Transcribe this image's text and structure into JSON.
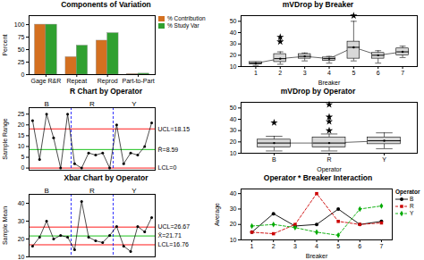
{
  "chart_data": [
    {
      "type": "bar",
      "title": "Components of Variation",
      "ylabel": "Percent",
      "categories": [
        "Gage R&R",
        "Repeat",
        "Reprod",
        "Part-to-Part"
      ],
      "series": [
        {
          "name": "% Contribution",
          "color": "#d47020",
          "values": [
            100,
            35,
            68,
            1
          ]
        },
        {
          "name": "% Study Var",
          "color": "#30a030",
          "values": [
            100,
            58,
            83,
            2
          ]
        }
      ],
      "ylim": [
        0,
        118
      ],
      "yticks": [
        0,
        25,
        50,
        75,
        100
      ],
      "legend": "upper right",
      "grid": false
    },
    {
      "type": "line",
      "title": "R Chart by Operator",
      "ylabel": "Sample Range",
      "x": [
        1,
        2,
        3,
        4,
        5,
        6,
        7,
        8,
        9,
        10,
        11,
        12,
        13,
        14,
        15,
        16,
        17,
        18
      ],
      "values": [
        22,
        4,
        25,
        14,
        0,
        25,
        2,
        0,
        7,
        6,
        7,
        0,
        20,
        2,
        7,
        6,
        10,
        21
      ],
      "color": "#000000",
      "marker": "circle",
      "xlim": [
        0.5,
        18.5
      ],
      "ylim": [
        -1,
        28
      ],
      "yticks": [
        0,
        5,
        10,
        15,
        20,
        25
      ],
      "tick_labels": "y",
      "grid": false,
      "hlines": [
        {
          "label": "UCL=18.15",
          "value": 18.15,
          "color": "red"
        },
        {
          "label": "R̄=8.59",
          "value": 8.59,
          "color": "#00bb00"
        },
        {
          "label": "LCL=0",
          "value": 0,
          "color": "red"
        }
      ],
      "vlines": [
        {
          "value": 6.5,
          "color": "blue",
          "line_style": "dashed"
        },
        {
          "value": 12.5,
          "color": "blue",
          "line_style": "dashed"
        }
      ],
      "group_labels": [
        {
          "label": "B",
          "x": 3
        },
        {
          "label": "R",
          "x": 9.5
        },
        {
          "label": "Y",
          "x": 15.5
        }
      ]
    },
    {
      "type": "line",
      "title": "Xbar Chart by Operator",
      "ylabel": "Sample Mean",
      "x": [
        1,
        2,
        3,
        4,
        5,
        6,
        7,
        8,
        9,
        10,
        11,
        12,
        13,
        14,
        15,
        16,
        17,
        18
      ],
      "values": [
        16,
        21,
        30,
        20,
        22,
        21,
        14,
        41,
        21,
        19,
        18,
        22,
        27,
        16,
        13,
        27,
        24,
        32
      ],
      "color": "#000000",
      "marker": "circle",
      "xlim": [
        0.5,
        18.5
      ],
      "ylim": [
        10,
        45
      ],
      "yticks": [
        10,
        20,
        30,
        40
      ],
      "tick_labels": "y",
      "grid": false,
      "hlines": [
        {
          "label": "UCL=26.67",
          "value": 26.67,
          "color": "red"
        },
        {
          "label": "X̄=21.71",
          "value": 21.71,
          "color": "#00bb00"
        },
        {
          "label": "LCL=16.76",
          "value": 16.76,
          "color": "red"
        }
      ],
      "vlines": [
        {
          "value": 6.5,
          "color": "blue",
          "line_style": "dashed"
        },
        {
          "value": 12.5,
          "color": "blue",
          "line_style": "dashed"
        }
      ],
      "group_labels": [
        {
          "label": "B",
          "x": 3
        },
        {
          "label": "R",
          "x": 9.5
        },
        {
          "label": "Y",
          "x": 15.5
        }
      ]
    },
    {
      "type": "box",
      "title": "mVDrop by Breaker",
      "xlabel": "Breaker",
      "x": [
        1,
        2,
        3,
        4,
        5,
        6,
        7
      ],
      "medians": [
        13,
        17,
        19,
        17,
        27,
        20,
        23
      ],
      "q1": [
        12,
        14,
        17,
        15,
        17,
        17,
        20
      ],
      "q3": [
        14,
        21,
        21,
        18,
        32,
        22,
        26
      ],
      "whisker_low": [
        11,
        12,
        15,
        13,
        15,
        13,
        18
      ],
      "whisker_high": [
        14,
        23,
        22,
        19,
        50,
        24,
        28
      ],
      "outliers": {
        "x": [
          2,
          2,
          5
        ],
        "y": [
          36,
          32,
          55
        ],
        "marker": "star"
      },
      "color": "#d8d8d8",
      "xlim": [
        0.4,
        7.6
      ],
      "xticks": [
        1,
        2,
        3,
        4,
        5,
        6,
        7
      ],
      "ylim": [
        10,
        55
      ],
      "yticks": [
        10,
        20,
        30,
        40,
        50
      ],
      "grid": false
    },
    {
      "type": "box",
      "title": "mVDrop by Operator",
      "xlabel": "Operator",
      "categories": [
        "B",
        "R",
        "Y"
      ],
      "medians": [
        19,
        19,
        21
      ],
      "q1": [
        15,
        15,
        18
      ],
      "q3": [
        22,
        24,
        24
      ],
      "whisker_low": [
        12,
        12,
        14
      ],
      "whisker_high": [
        25,
        27,
        28
      ],
      "outliers": {
        "x": [
          "B",
          "R",
          "R",
          "R",
          "R"
        ],
        "y": [
          37,
          53,
          42,
          38,
          30
        ],
        "marker": "star"
      },
      "color": "#d8d8d8",
      "ylim": [
        10,
        55
      ],
      "yticks": [
        10,
        20,
        30,
        40,
        50
      ],
      "grid": false
    },
    {
      "type": "line",
      "title": "Operator * Breaker Interaction",
      "xlabel": "Breaker",
      "ylabel": "Average",
      "x": [
        1,
        2,
        3,
        4,
        5,
        6,
        7
      ],
      "series": [
        {
          "name": "B",
          "color": "#000000",
          "marker": "circle",
          "line_style": "solid",
          "values": [
            15,
            27,
            19,
            20,
            30,
            20,
            22
          ]
        },
        {
          "name": "R",
          "color": "#cc0000",
          "marker": "square",
          "line_style": "dashed",
          "values": [
            15,
            14,
            20,
            40,
            22,
            20,
            21
          ]
        },
        {
          "name": "Y",
          "color": "#00aa00",
          "marker": "diamond",
          "line_style": "dashed",
          "values": [
            19,
            20,
            18,
            15,
            13,
            30,
            32
          ]
        }
      ],
      "xlim": [
        0.5,
        7.5
      ],
      "xticks": [
        1,
        2,
        3,
        4,
        5,
        6,
        7
      ],
      "ylim": [
        10,
        43
      ],
      "yticks": [
        10,
        20,
        30,
        40
      ],
      "legend": "upper right",
      "legend_title": "Operator",
      "grid": false
    }
  ]
}
